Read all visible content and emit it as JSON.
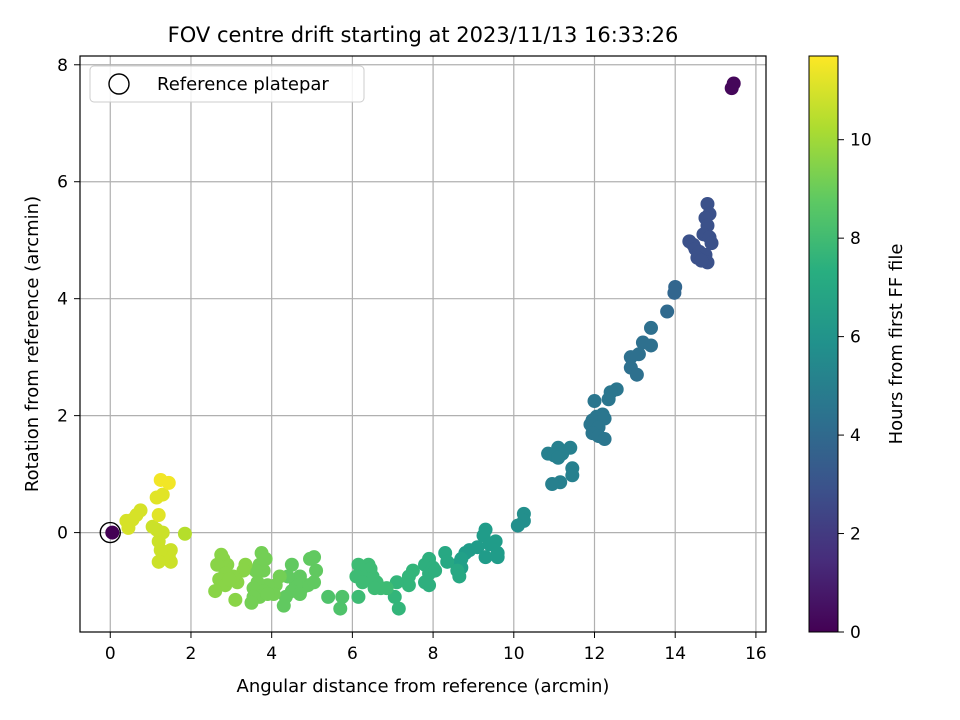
{
  "chart_data": {
    "type": "scatter",
    "title": "FOV centre drift starting at 2023/11/13 16:33:26",
    "xlabel": "Angular distance from reference (arcmin)",
    "ylabel": "Rotation from reference (arcmin)",
    "xlim": [
      -0.75,
      16.25
    ],
    "ylim": [
      -1.7,
      8.15
    ],
    "xticks": [
      0,
      2,
      4,
      6,
      8,
      10,
      12,
      14,
      16
    ],
    "yticks": [
      0,
      2,
      4,
      6,
      8
    ],
    "grid": true,
    "legend": {
      "placement": "upper-left",
      "entries": [
        "Reference platepar"
      ]
    },
    "colorbar": {
      "label": "Hours from first FF file",
      "range": [
        0,
        11.7
      ],
      "ticks": [
        0,
        2,
        4,
        6,
        8,
        10
      ],
      "colormap": "viridis"
    },
    "reference_point": {
      "x": 0,
      "y": 0,
      "label": "Reference platepar"
    },
    "points": [
      {
        "x": 15.4,
        "y": 7.6,
        "h": 0.2
      },
      {
        "x": 15.45,
        "y": 7.68,
        "h": 0.2
      },
      {
        "x": 14.8,
        "y": 5.62,
        "h": 2.9
      },
      {
        "x": 14.85,
        "y": 5.45,
        "h": 2.9
      },
      {
        "x": 14.75,
        "y": 5.38,
        "h": 2.9
      },
      {
        "x": 14.8,
        "y": 5.25,
        "h": 2.9
      },
      {
        "x": 14.7,
        "y": 5.1,
        "h": 2.9
      },
      {
        "x": 14.85,
        "y": 5.05,
        "h": 2.9
      },
      {
        "x": 14.35,
        "y": 4.98,
        "h": 2.9
      },
      {
        "x": 14.45,
        "y": 4.92,
        "h": 2.9
      },
      {
        "x": 14.9,
        "y": 4.95,
        "h": 2.9
      },
      {
        "x": 14.5,
        "y": 4.85,
        "h": 2.9
      },
      {
        "x": 14.6,
        "y": 4.8,
        "h": 2.9
      },
      {
        "x": 14.75,
        "y": 4.75,
        "h": 2.9
      },
      {
        "x": 14.55,
        "y": 4.7,
        "h": 2.9
      },
      {
        "x": 14.8,
        "y": 4.62,
        "h": 2.9
      },
      {
        "x": 14.65,
        "y": 4.65,
        "h": 2.9
      },
      {
        "x": 14.0,
        "y": 4.2,
        "h": 3.8
      },
      {
        "x": 13.98,
        "y": 4.1,
        "h": 3.8
      },
      {
        "x": 13.8,
        "y": 3.78,
        "h": 4.0
      },
      {
        "x": 13.4,
        "y": 3.5,
        "h": 4.3
      },
      {
        "x": 13.2,
        "y": 3.25,
        "h": 4.3
      },
      {
        "x": 13.4,
        "y": 3.2,
        "h": 4.3
      },
      {
        "x": 13.1,
        "y": 3.05,
        "h": 4.3
      },
      {
        "x": 12.9,
        "y": 3.0,
        "h": 4.3
      },
      {
        "x": 12.9,
        "y": 2.82,
        "h": 4.3
      },
      {
        "x": 13.05,
        "y": 2.7,
        "h": 4.3
      },
      {
        "x": 12.55,
        "y": 2.45,
        "h": 4.6
      },
      {
        "x": 12.4,
        "y": 2.4,
        "h": 4.6
      },
      {
        "x": 12.35,
        "y": 2.28,
        "h": 4.6
      },
      {
        "x": 12.0,
        "y": 2.25,
        "h": 4.6
      },
      {
        "x": 12.2,
        "y": 2.02,
        "h": 4.6
      },
      {
        "x": 12.05,
        "y": 1.98,
        "h": 4.6
      },
      {
        "x": 11.95,
        "y": 1.92,
        "h": 4.6
      },
      {
        "x": 12.25,
        "y": 1.95,
        "h": 4.6
      },
      {
        "x": 11.9,
        "y": 1.85,
        "h": 4.6
      },
      {
        "x": 12.1,
        "y": 1.8,
        "h": 4.6
      },
      {
        "x": 11.95,
        "y": 1.7,
        "h": 4.6
      },
      {
        "x": 12.1,
        "y": 1.65,
        "h": 4.6
      },
      {
        "x": 12.25,
        "y": 1.6,
        "h": 4.6
      },
      {
        "x": 11.1,
        "y": 1.45,
        "h": 5.1
      },
      {
        "x": 11.4,
        "y": 1.45,
        "h": 5.1
      },
      {
        "x": 10.85,
        "y": 1.35,
        "h": 5.1
      },
      {
        "x": 11.0,
        "y": 1.32,
        "h": 5.1
      },
      {
        "x": 11.2,
        "y": 1.35,
        "h": 5.1
      },
      {
        "x": 11.1,
        "y": 1.28,
        "h": 5.1
      },
      {
        "x": 11.45,
        "y": 1.1,
        "h": 5.1
      },
      {
        "x": 11.45,
        "y": 0.98,
        "h": 5.1
      },
      {
        "x": 11.15,
        "y": 0.86,
        "h": 5.1
      },
      {
        "x": 10.95,
        "y": 0.83,
        "h": 5.1
      },
      {
        "x": 10.25,
        "y": 0.32,
        "h": 5.8
      },
      {
        "x": 10.25,
        "y": 0.2,
        "h": 5.8
      },
      {
        "x": 10.1,
        "y": 0.12,
        "h": 5.8
      },
      {
        "x": 9.3,
        "y": 0.05,
        "h": 6.4
      },
      {
        "x": 9.25,
        "y": -0.05,
        "h": 6.4
      },
      {
        "x": 9.55,
        "y": -0.15,
        "h": 6.4
      },
      {
        "x": 9.4,
        "y": -0.2,
        "h": 6.4
      },
      {
        "x": 9.1,
        "y": -0.25,
        "h": 6.4
      },
      {
        "x": 8.9,
        "y": -0.3,
        "h": 6.4
      },
      {
        "x": 9.6,
        "y": -0.35,
        "h": 6.4
      },
      {
        "x": 9.6,
        "y": -0.42,
        "h": 6.4
      },
      {
        "x": 9.3,
        "y": -0.42,
        "h": 6.4
      },
      {
        "x": 8.8,
        "y": -0.35,
        "h": 6.4
      },
      {
        "x": 8.7,
        "y": -0.45,
        "h": 6.6
      },
      {
        "x": 8.6,
        "y": -0.55,
        "h": 6.6
      },
      {
        "x": 8.7,
        "y": -0.6,
        "h": 6.6
      },
      {
        "x": 8.3,
        "y": -0.35,
        "h": 7.0
      },
      {
        "x": 8.35,
        "y": -0.5,
        "h": 7.0
      },
      {
        "x": 8.6,
        "y": -0.65,
        "h": 7.0
      },
      {
        "x": 8.65,
        "y": -0.75,
        "h": 7.0
      },
      {
        "x": 7.9,
        "y": -0.45,
        "h": 7.4
      },
      {
        "x": 7.8,
        "y": -0.55,
        "h": 7.4
      },
      {
        "x": 8.0,
        "y": -0.6,
        "h": 7.4
      },
      {
        "x": 7.9,
        "y": -0.7,
        "h": 7.4
      },
      {
        "x": 8.05,
        "y": -0.65,
        "h": 7.4
      },
      {
        "x": 7.8,
        "y": -0.85,
        "h": 7.4
      },
      {
        "x": 7.9,
        "y": -0.9,
        "h": 7.4
      },
      {
        "x": 7.5,
        "y": -0.65,
        "h": 7.7
      },
      {
        "x": 7.4,
        "y": -0.75,
        "h": 7.7
      },
      {
        "x": 7.4,
        "y": -0.9,
        "h": 7.7
      },
      {
        "x": 7.1,
        "y": -0.85,
        "h": 7.7
      },
      {
        "x": 7.05,
        "y": -1.1,
        "h": 7.7
      },
      {
        "x": 7.15,
        "y": -1.3,
        "h": 7.7
      },
      {
        "x": 6.85,
        "y": -0.95,
        "h": 8.0
      },
      {
        "x": 6.7,
        "y": -0.95,
        "h": 8.0
      },
      {
        "x": 6.6,
        "y": -0.85,
        "h": 8.0
      },
      {
        "x": 6.5,
        "y": -0.75,
        "h": 8.0
      },
      {
        "x": 6.4,
        "y": -0.55,
        "h": 8.0
      },
      {
        "x": 6.45,
        "y": -0.62,
        "h": 8.0
      },
      {
        "x": 6.4,
        "y": -0.8,
        "h": 8.0
      },
      {
        "x": 6.2,
        "y": -0.62,
        "h": 8.0
      },
      {
        "x": 6.15,
        "y": -0.55,
        "h": 8.0
      },
      {
        "x": 6.2,
        "y": -0.7,
        "h": 8.0
      },
      {
        "x": 6.1,
        "y": -0.75,
        "h": 8.0
      },
      {
        "x": 6.25,
        "y": -0.85,
        "h": 8.0
      },
      {
        "x": 6.15,
        "y": -1.1,
        "h": 8.0
      },
      {
        "x": 6.55,
        "y": -0.95,
        "h": 8.0
      },
      {
        "x": 5.75,
        "y": -1.1,
        "h": 8.4
      },
      {
        "x": 5.7,
        "y": -1.3,
        "h": 8.4
      },
      {
        "x": 5.4,
        "y": -1.1,
        "h": 8.4
      },
      {
        "x": 5.05,
        "y": -0.42,
        "h": 8.8
      },
      {
        "x": 4.95,
        "y": -0.45,
        "h": 8.8
      },
      {
        "x": 5.1,
        "y": -0.65,
        "h": 8.8
      },
      {
        "x": 5.05,
        "y": -0.85,
        "h": 8.8
      },
      {
        "x": 4.9,
        "y": -0.9,
        "h": 8.8
      },
      {
        "x": 4.7,
        "y": -0.75,
        "h": 8.8
      },
      {
        "x": 4.75,
        "y": -0.95,
        "h": 8.8
      },
      {
        "x": 4.6,
        "y": -0.9,
        "h": 8.8
      },
      {
        "x": 4.5,
        "y": -0.55,
        "h": 8.8
      },
      {
        "x": 4.4,
        "y": -0.75,
        "h": 8.8
      },
      {
        "x": 4.5,
        "y": -1.0,
        "h": 8.8
      },
      {
        "x": 4.7,
        "y": -1.05,
        "h": 8.8
      },
      {
        "x": 4.35,
        "y": -1.1,
        "h": 8.8
      },
      {
        "x": 4.3,
        "y": -1.25,
        "h": 8.8
      },
      {
        "x": 4.2,
        "y": -0.75,
        "h": 9.2
      },
      {
        "x": 4.1,
        "y": -0.9,
        "h": 9.2
      },
      {
        "x": 4.05,
        "y": -1.05,
        "h": 9.2
      },
      {
        "x": 3.9,
        "y": -0.9,
        "h": 9.2
      },
      {
        "x": 3.8,
        "y": -0.65,
        "h": 9.2
      },
      {
        "x": 3.75,
        "y": -0.35,
        "h": 9.2
      },
      {
        "x": 3.85,
        "y": -0.45,
        "h": 9.2
      },
      {
        "x": 3.7,
        "y": -0.55,
        "h": 9.2
      },
      {
        "x": 3.6,
        "y": -0.65,
        "h": 9.2
      },
      {
        "x": 3.65,
        "y": -0.85,
        "h": 9.2
      },
      {
        "x": 3.55,
        "y": -0.95,
        "h": 9.2
      },
      {
        "x": 3.8,
        "y": -1.0,
        "h": 9.2
      },
      {
        "x": 3.7,
        "y": -1.1,
        "h": 9.2
      },
      {
        "x": 3.55,
        "y": -1.1,
        "h": 9.2
      },
      {
        "x": 3.5,
        "y": -1.2,
        "h": 9.2
      },
      {
        "x": 3.9,
        "y": -1.05,
        "h": 9.2
      },
      {
        "x": 3.35,
        "y": -0.55,
        "h": 9.6
      },
      {
        "x": 3.3,
        "y": -0.65,
        "h": 9.6
      },
      {
        "x": 3.15,
        "y": -0.85,
        "h": 9.6
      },
      {
        "x": 3.05,
        "y": -0.75,
        "h": 9.6
      },
      {
        "x": 3.1,
        "y": -1.15,
        "h": 9.6
      },
      {
        "x": 2.9,
        "y": -0.55,
        "h": 9.6
      },
      {
        "x": 2.8,
        "y": -0.45,
        "h": 9.6
      },
      {
        "x": 2.75,
        "y": -0.38,
        "h": 9.6
      },
      {
        "x": 2.65,
        "y": -0.55,
        "h": 9.6
      },
      {
        "x": 2.85,
        "y": -0.7,
        "h": 9.6
      },
      {
        "x": 2.7,
        "y": -0.8,
        "h": 9.6
      },
      {
        "x": 2.85,
        "y": -0.9,
        "h": 9.6
      },
      {
        "x": 2.6,
        "y": -1.0,
        "h": 9.6
      },
      {
        "x": 2.95,
        "y": -0.8,
        "h": 9.6
      },
      {
        "x": 1.85,
        "y": -0.02,
        "h": 10.4
      },
      {
        "x": 1.5,
        "y": -0.3,
        "h": 10.8
      },
      {
        "x": 1.45,
        "y": -0.4,
        "h": 10.8
      },
      {
        "x": 1.5,
        "y": -0.5,
        "h": 10.8
      },
      {
        "x": 1.3,
        "y": -0.45,
        "h": 10.8
      },
      {
        "x": 1.25,
        "y": -0.3,
        "h": 10.8
      },
      {
        "x": 1.2,
        "y": -0.15,
        "h": 10.8
      },
      {
        "x": 1.3,
        "y": 0.0,
        "h": 10.8
      },
      {
        "x": 1.15,
        "y": 0.05,
        "h": 10.8
      },
      {
        "x": 1.05,
        "y": 0.1,
        "h": 10.8
      },
      {
        "x": 1.2,
        "y": -0.5,
        "h": 10.8
      },
      {
        "x": 1.2,
        "y": 0.3,
        "h": 11.2
      },
      {
        "x": 1.15,
        "y": 0.6,
        "h": 11.2
      },
      {
        "x": 1.3,
        "y": 0.65,
        "h": 11.2
      },
      {
        "x": 1.25,
        "y": 0.9,
        "h": 11.5
      },
      {
        "x": 1.45,
        "y": 0.85,
        "h": 11.5
      },
      {
        "x": 0.75,
        "y": 0.38,
        "h": 11.0
      },
      {
        "x": 0.65,
        "y": 0.3,
        "h": 11.0
      },
      {
        "x": 0.55,
        "y": 0.22,
        "h": 11.0
      },
      {
        "x": 0.4,
        "y": 0.2,
        "h": 11.0
      },
      {
        "x": 0.45,
        "y": 0.08,
        "h": 11.0
      },
      {
        "x": 0.05,
        "y": 0.0,
        "h": 0.0
      }
    ]
  }
}
